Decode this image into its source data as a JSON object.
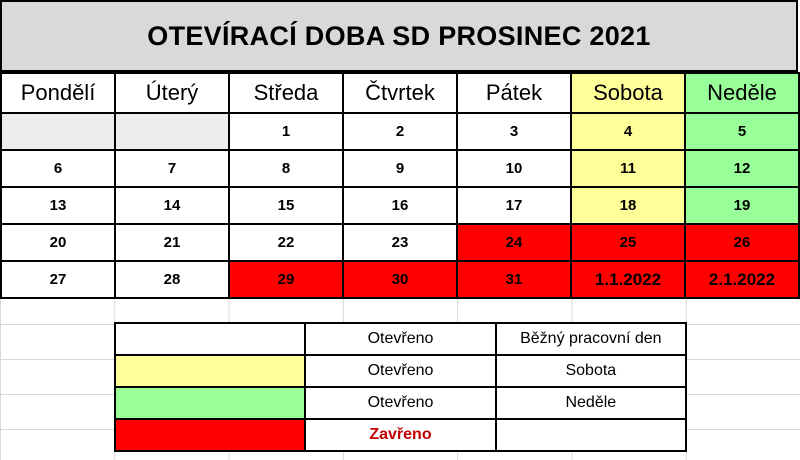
{
  "title": "OTEVÍRACÍ DOBA SD PROSINEC 2021",
  "days": [
    "Pondělí",
    "Úterý",
    "Středa",
    "Čtvrtek",
    "Pátek",
    "Sobota",
    "Neděle"
  ],
  "colors": {
    "saturday": "#ffff99",
    "sunday": "#99ff99",
    "closed": "#ff0000",
    "empty": "#ececec",
    "closed_text": "#c00000"
  },
  "weeks": [
    [
      {
        "text": "",
        "status": "empty"
      },
      {
        "text": "",
        "status": "empty"
      },
      {
        "text": "1",
        "status": "open"
      },
      {
        "text": "2",
        "status": "open"
      },
      {
        "text": "3",
        "status": "open"
      },
      {
        "text": "4",
        "status": "saturday"
      },
      {
        "text": "5",
        "status": "sunday"
      }
    ],
    [
      {
        "text": "6",
        "status": "open"
      },
      {
        "text": "7",
        "status": "open"
      },
      {
        "text": "8",
        "status": "open"
      },
      {
        "text": "9",
        "status": "open"
      },
      {
        "text": "10",
        "status": "open"
      },
      {
        "text": "11",
        "status": "saturday"
      },
      {
        "text": "12",
        "status": "sunday"
      }
    ],
    [
      {
        "text": "13",
        "status": "open"
      },
      {
        "text": "14",
        "status": "open"
      },
      {
        "text": "15",
        "status": "open"
      },
      {
        "text": "16",
        "status": "open"
      },
      {
        "text": "17",
        "status": "open"
      },
      {
        "text": "18",
        "status": "saturday"
      },
      {
        "text": "19",
        "status": "sunday"
      }
    ],
    [
      {
        "text": "20",
        "status": "open"
      },
      {
        "text": "21",
        "status": "open"
      },
      {
        "text": "22",
        "status": "open"
      },
      {
        "text": "23",
        "status": "open"
      },
      {
        "text": "24",
        "status": "closed"
      },
      {
        "text": "25",
        "status": "closed"
      },
      {
        "text": "26",
        "status": "closed"
      }
    ],
    [
      {
        "text": "27",
        "status": "open"
      },
      {
        "text": "28",
        "status": "open"
      },
      {
        "text": "29",
        "status": "closed"
      },
      {
        "text": "30",
        "status": "closed"
      },
      {
        "text": "31",
        "status": "closed"
      },
      {
        "text": "1.1.2022",
        "status": "closed"
      },
      {
        "text": "2.1.2022",
        "status": "closed"
      }
    ]
  ],
  "legend": [
    {
      "swatch": "open",
      "state": "Otevřeno",
      "desc": "Běžný pracovní den"
    },
    {
      "swatch": "saturday",
      "state": "Otevřeno",
      "desc": "Sobota"
    },
    {
      "swatch": "sunday",
      "state": "Otevřeno",
      "desc": "Neděle"
    },
    {
      "swatch": "closed",
      "state": "Zavřeno",
      "desc": ""
    }
  ]
}
